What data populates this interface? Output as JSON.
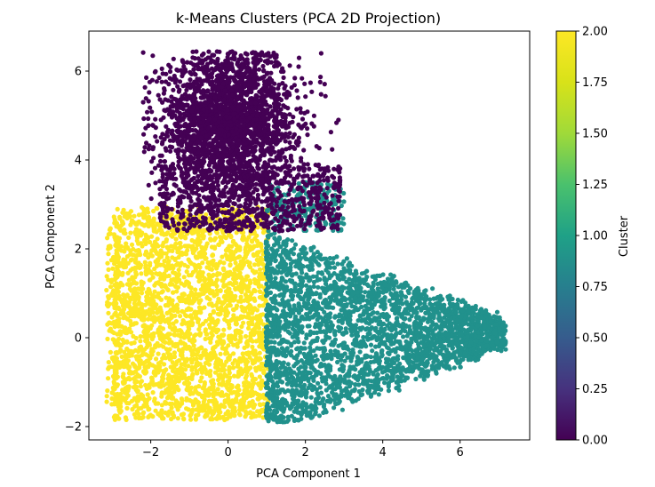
{
  "chart_data": {
    "type": "scatter",
    "title": "k-Means Clusters (PCA 2D Projection)",
    "xlabel": "PCA Component 1",
    "ylabel": "PCA Component 2",
    "xlim": [
      -3.6,
      7.8
    ],
    "ylim": [
      -2.3,
      6.9
    ],
    "x_ticks": [
      -2,
      0,
      2,
      4,
      6
    ],
    "y_ticks": [
      -2,
      0,
      2,
      4,
      6
    ],
    "x_tick_labels": [
      "−2",
      "0",
      "2",
      "4",
      "6"
    ],
    "y_tick_labels": [
      "−2",
      "0",
      "2",
      "4",
      "6"
    ],
    "grid": false,
    "colormap": "viridis",
    "colors": {
      "cluster_0": "#440154",
      "cluster_1": "#21918c",
      "cluster_2": "#fde725"
    },
    "series": [
      {
        "cluster": 0,
        "color": "#440154",
        "x_range": [
          -2.3,
          3.0
        ],
        "y_range": [
          2.3,
          6.5
        ],
        "center": [
          0.0,
          4.8
        ]
      },
      {
        "cluster": 1,
        "color": "#21918c",
        "x_range": [
          1.0,
          7.2
        ],
        "y_range": [
          -1.9,
          3.6
        ],
        "center": [
          2.5,
          0.2
        ]
      },
      {
        "cluster": 2,
        "color": "#fde725",
        "x_range": [
          -3.1,
          1.1
        ],
        "y_range": [
          -1.9,
          3.0
        ],
        "center": [
          -1.0,
          0.2
        ]
      }
    ],
    "colorbar": {
      "label": "Cluster",
      "range": [
        0.0,
        2.0
      ],
      "ticks": [
        0.0,
        0.25,
        0.5,
        0.75,
        1.0,
        1.25,
        1.5,
        1.75,
        2.0
      ],
      "tick_labels": [
        "0.00",
        "0.25",
        "0.50",
        "0.75",
        "1.00",
        "1.25",
        "1.50",
        "1.75",
        "2.00"
      ]
    }
  }
}
